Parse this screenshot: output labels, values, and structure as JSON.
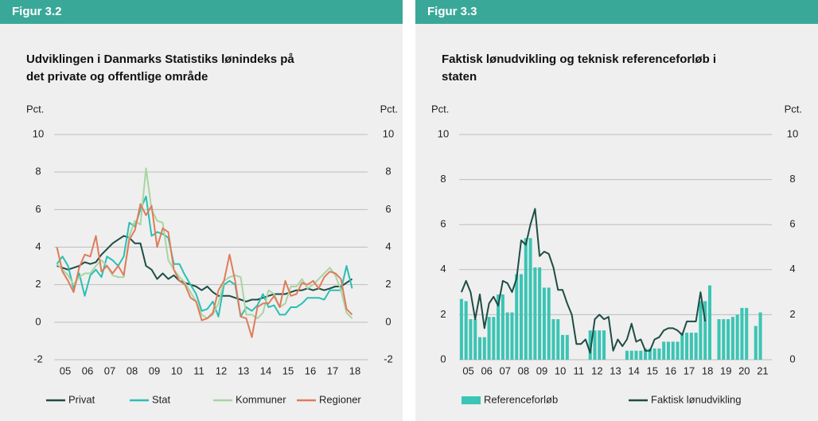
{
  "chart_data": [
    {
      "type": "line",
      "label": "Figur 3.2",
      "title": [
        "Udviklingen i Danmarks Statistiks lønindeks på",
        "det private og offentlige område"
      ],
      "y_label": "Pct.",
      "y2_label": "Pct.",
      "categories": [
        "05",
        null,
        null,
        null,
        "06",
        null,
        null,
        null,
        "07",
        null,
        null,
        null,
        "08",
        null,
        null,
        null,
        "09",
        null,
        null,
        null,
        "10",
        null,
        null,
        null,
        "11",
        null,
        null,
        null,
        "12",
        null,
        null,
        null,
        "13",
        null,
        null,
        null,
        "14",
        null,
        null,
        null,
        "15",
        null,
        null,
        null,
        "16",
        null,
        null,
        null,
        "17",
        null,
        null,
        null,
        "18",
        null
      ],
      "ylim": [
        -2,
        10
      ],
      "yticks": [
        -2,
        0,
        2,
        4,
        6,
        8,
        10
      ],
      "y2lim": [
        -2,
        10
      ],
      "y2ticks": [
        -2,
        0,
        2,
        4,
        6,
        8,
        10
      ],
      "grid": true,
      "series": [
        {
          "name": "Privat",
          "color": "#1e4d45",
          "values": [
            3.0,
            2.9,
            2.8,
            2.9,
            3.0,
            3.2,
            3.1,
            3.2,
            3.6,
            3.9,
            4.2,
            4.4,
            4.6,
            4.5,
            4.2,
            4.2,
            3.0,
            2.8,
            2.3,
            2.6,
            2.3,
            2.5,
            2.2,
            2.1,
            2.0,
            1.9,
            1.7,
            1.9,
            1.6,
            1.4,
            1.4,
            1.4,
            1.3,
            1.2,
            1.1,
            1.2,
            1.2,
            1.3,
            1.4,
            1.5,
            1.5,
            1.5,
            1.6,
            1.7,
            1.7,
            1.8,
            1.7,
            1.8,
            1.7,
            1.8,
            1.9,
            1.9,
            2.1,
            2.3
          ]
        },
        {
          "name": "Stat",
          "color": "#2bbfb3",
          "values": [
            3.1,
            3.5,
            3.0,
            1.8,
            2.6,
            1.4,
            2.5,
            2.8,
            2.4,
            3.5,
            3.3,
            3.0,
            3.5,
            5.3,
            5.1,
            6.0,
            6.7,
            4.6,
            4.8,
            4.7,
            4.5,
            3.1,
            3.1,
            2.5,
            2.0,
            1.5,
            0.6,
            0.7,
            1.1,
            0.3,
            2.0,
            2.2,
            2.0,
            0.3,
            0.8,
            0.6,
            0.9,
            1.5,
            0.8,
            0.9,
            0.4,
            0.4,
            0.8,
            0.8,
            1.0,
            1.3,
            1.3,
            1.3,
            1.2,
            1.7,
            1.7,
            1.7,
            3.0,
            1.8
          ]
        },
        {
          "name": "Kommuner",
          "color": "#a8d5a2",
          "values": [
            3.1,
            2.8,
            2.5,
            2.0,
            2.4,
            2.6,
            2.6,
            3.0,
            3.3,
            3.0,
            2.5,
            2.4,
            2.4,
            4.6,
            5.4,
            5.2,
            8.2,
            6.0,
            5.4,
            5.3,
            3.3,
            2.8,
            2.4,
            2.1,
            1.6,
            1.1,
            0.4,
            0.2,
            0.4,
            1.0,
            2.2,
            2.4,
            2.5,
            2.4,
            0.4,
            0.4,
            0.2,
            0.5,
            1.7,
            1.5,
            0.8,
            1.0,
            1.9,
            1.9,
            2.3,
            1.8,
            2.0,
            2.3,
            2.6,
            2.9,
            2.5,
            1.7,
            0.5,
            0.2
          ]
        },
        {
          "name": "Regioner",
          "color": "#e07b5a",
          "values": [
            4.0,
            2.7,
            2.2,
            1.6,
            2.9,
            3.6,
            3.5,
            4.6,
            2.7,
            3.0,
            2.6,
            3.0,
            2.5,
            4.4,
            4.9,
            6.3,
            5.7,
            6.2,
            4.0,
            5.0,
            4.8,
            2.8,
            2.2,
            2.0,
            1.3,
            1.1,
            0.1,
            0.2,
            0.5,
            1.7,
            2.2,
            3.6,
            2.2,
            0.3,
            0.2,
            -0.8,
            0.8,
            1.0,
            1.0,
            1.4,
            0.8,
            2.2,
            1.4,
            1.5,
            2.1,
            2.0,
            2.2,
            1.8,
            2.4,
            2.7,
            2.6,
            2.3,
            0.7,
            0.4
          ]
        }
      ]
    },
    {
      "type": "bar",
      "label": "Figur 3.3",
      "title": [
        "Faktisk lønudvikling og teknisk referenceforløb i",
        "staten"
      ],
      "y_label": "Pct.",
      "y2_label": "Pct.",
      "categories": [
        "05",
        null,
        null,
        null,
        "06",
        null,
        null,
        null,
        "07",
        null,
        null,
        null,
        "08",
        null,
        null,
        null,
        "09",
        null,
        null,
        null,
        "10",
        null,
        null,
        null,
        "11",
        null,
        null,
        null,
        "12",
        null,
        null,
        null,
        "13",
        null,
        null,
        null,
        "14",
        null,
        null,
        null,
        "15",
        null,
        null,
        null,
        "16",
        null,
        null,
        null,
        "17",
        null,
        null,
        null,
        "18",
        null,
        null,
        null,
        "19",
        null,
        null,
        null,
        "20",
        null,
        null,
        null,
        "21",
        null,
        null,
        null
      ],
      "ylim": [
        0,
        10
      ],
      "yticks": [
        0,
        2,
        4,
        6,
        8,
        10
      ],
      "y2lim": [
        0,
        10
      ],
      "y2ticks": [
        0,
        2,
        4,
        6,
        8,
        10
      ],
      "grid": true,
      "series": [
        {
          "name": "Referenceforløb",
          "color": "#3cc4b4",
          "type": "bar",
          "values": [
            2.7,
            2.6,
            1.8,
            1.8,
            1.0,
            1.0,
            1.9,
            1.9,
            2.9,
            2.9,
            2.1,
            2.1,
            3.8,
            3.8,
            5.4,
            5.4,
            4.1,
            4.1,
            3.2,
            3.2,
            1.8,
            1.8,
            1.1,
            1.1,
            null,
            null,
            null,
            null,
            1.3,
            1.3,
            1.3,
            1.3,
            null,
            null,
            null,
            null,
            0.4,
            0.4,
            0.4,
            0.4,
            0.5,
            0.5,
            0.5,
            0.5,
            0.8,
            0.8,
            0.8,
            0.8,
            1.2,
            1.2,
            1.2,
            1.2,
            2.6,
            2.6,
            3.3,
            null,
            1.8,
            1.8,
            1.8,
            1.9,
            2.0,
            2.3,
            2.3,
            null,
            1.5,
            2.1,
            null,
            null
          ]
        },
        {
          "name": "Faktisk lønudvikling",
          "color": "#1e4d45",
          "type": "line",
          "values": [
            3.0,
            3.5,
            3.0,
            1.8,
            2.9,
            1.4,
            2.5,
            2.8,
            2.4,
            3.5,
            3.4,
            3.0,
            3.6,
            5.3,
            5.1,
            6.0,
            6.7,
            4.6,
            4.8,
            4.7,
            4.1,
            3.1,
            3.1,
            2.5,
            2.0,
            0.7,
            0.7,
            0.9,
            0.3,
            1.8,
            2.0,
            1.8,
            1.9,
            0.4,
            0.9,
            0.6,
            0.9,
            1.6,
            0.8,
            0.9,
            0.4,
            0.4,
            0.9,
            1.0,
            1.3,
            1.4,
            1.4,
            1.3,
            1.1,
            1.7,
            1.7,
            1.7,
            3.0,
            1.7,
            null,
            null,
            null,
            null,
            null,
            null,
            null,
            null,
            null,
            null,
            null,
            null,
            null,
            null
          ]
        }
      ]
    }
  ]
}
